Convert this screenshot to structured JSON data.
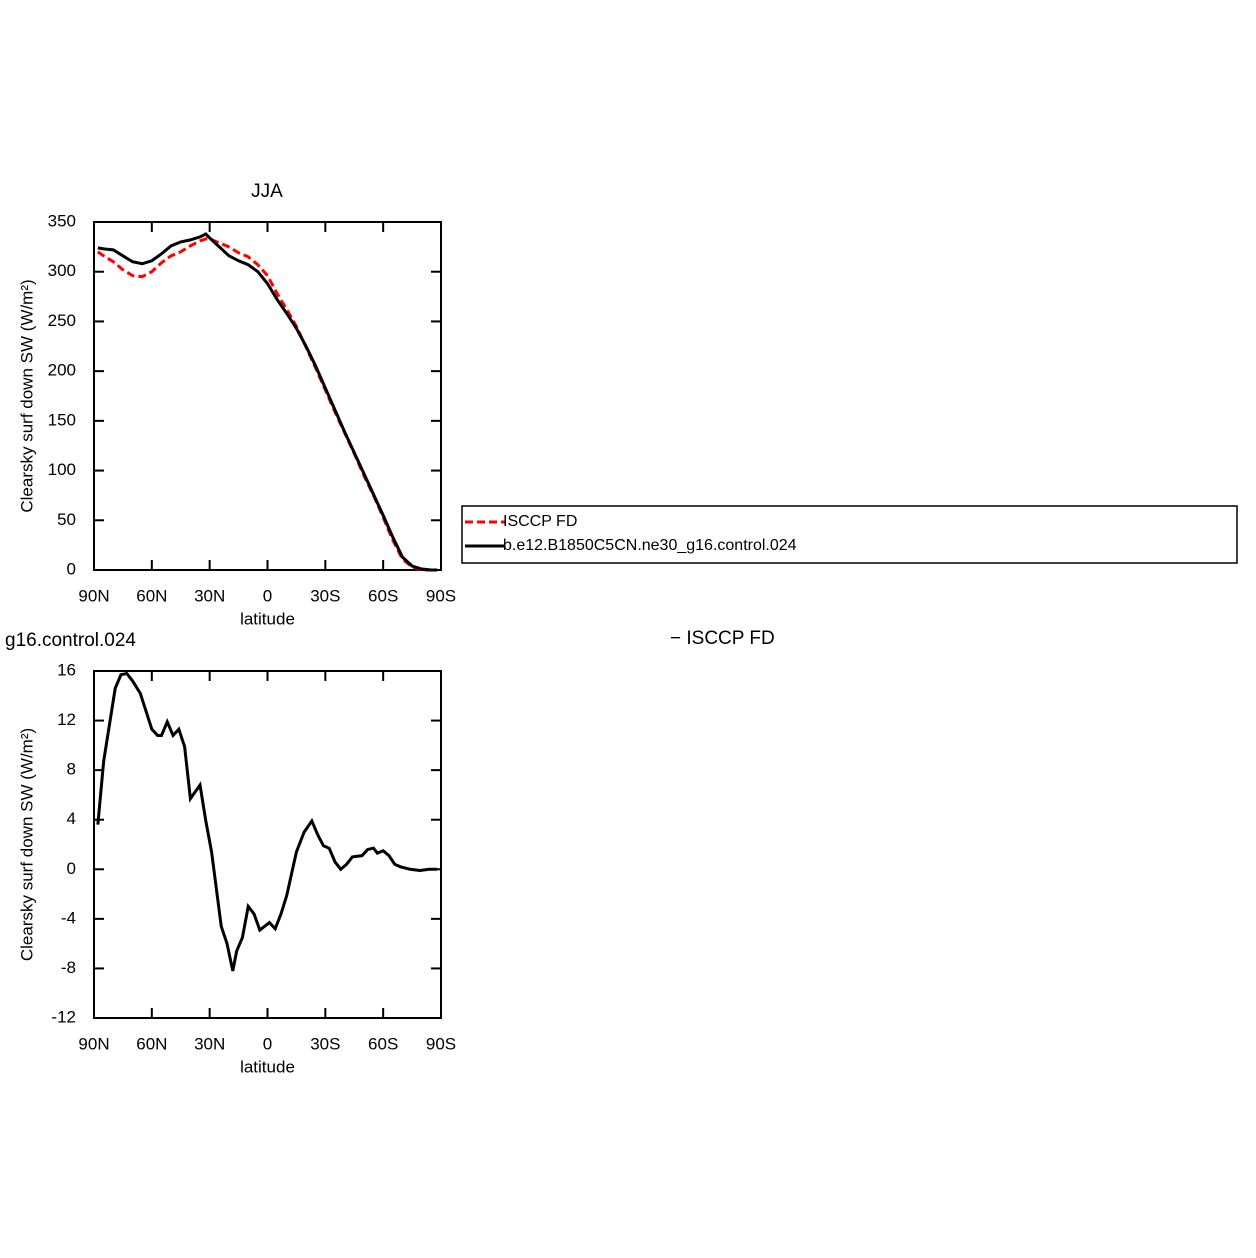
{
  "chart_data": [
    {
      "type": "line",
      "title": "JJA",
      "xlabel": "latitude",
      "ylabel": "Clearsky surf down SW (W/m²)",
      "x": [
        88,
        85,
        80,
        75,
        70,
        65,
        60,
        55,
        50,
        45,
        40,
        35,
        32,
        30,
        25,
        20,
        15,
        10,
        5,
        0,
        -5,
        -10,
        -15,
        -20,
        -25,
        -30,
        -35,
        -40,
        -45,
        -50,
        -55,
        -60,
        -65,
        -70,
        -75,
        -80,
        -85,
        -88
      ],
      "series": [
        {
          "name": "ISCCP FD",
          "color": "#ff0000",
          "style": "dashed",
          "values": [
            320,
            316,
            310,
            302,
            296,
            295,
            300,
            309,
            316,
            320,
            326,
            331,
            333,
            333,
            329,
            325,
            319,
            315,
            307,
            296,
            278,
            262,
            245,
            224,
            203,
            181,
            159,
            138,
            117,
            95,
            75,
            53,
            30,
            11,
            3,
            0,
            0,
            0
          ]
        },
        {
          "name": "b.e12.B1850C5CN.ne30_g16.control.024",
          "color": "#000000",
          "style": "solid",
          "values": [
            324,
            323,
            322,
            316,
            310,
            308,
            311,
            318,
            326,
            330,
            332,
            335,
            338,
            334,
            325,
            316,
            311,
            307,
            300,
            288,
            272,
            258,
            243,
            225,
            205,
            183,
            161,
            139,
            118,
            97,
            76,
            55,
            33,
            13,
            4,
            1,
            0,
            0
          ]
        }
      ],
      "xlim": [
        90,
        -90
      ],
      "xticks": [
        {
          "value": 90,
          "label": "90N"
        },
        {
          "value": 60,
          "label": "60N"
        },
        {
          "value": 30,
          "label": "30N"
        },
        0,
        {
          "value": -30,
          "label": "30S"
        },
        {
          "value": -60,
          "label": "60S"
        },
        {
          "value": -90,
          "label": "90S"
        }
      ],
      "ylim": [
        0,
        350
      ],
      "yticks": [
        0,
        50,
        100,
        150,
        200,
        250,
        300,
        350
      ],
      "legend": "right"
    },
    {
      "type": "line",
      "title": "g16.control.024",
      "annotation": "− ISCCP FD",
      "xlabel": "latitude",
      "ylabel": "Clearsky surf down SW (W/m²)",
      "x": [
        88,
        85,
        79,
        76,
        73,
        70,
        66,
        60,
        57,
        55,
        52,
        49,
        46,
        43,
        40,
        35,
        32,
        29,
        24,
        21,
        18,
        16,
        13,
        10,
        7,
        4,
        -1,
        -4,
        -7,
        -10,
        -15,
        -19,
        -23,
        -26,
        -29,
        -32,
        -35,
        -38,
        -41,
        -44,
        -49,
        -52,
        -55,
        -57,
        -60,
        -63,
        -66,
        -69,
        -74,
        -79,
        -84,
        -88
      ],
      "series": [
        {
          "color": "#000000",
          "style": "solid",
          "values": [
            3.6,
            8.7,
            14.6,
            15.7,
            15.8,
            15.2,
            14.2,
            11.3,
            10.8,
            10.8,
            11.9,
            10.8,
            11.3,
            9.9,
            5.7,
            6.8,
            3.9,
            1.4,
            -4.6,
            -6.0,
            -8.2,
            -6.6,
            -5.5,
            -3.0,
            -3.6,
            -4.9,
            -4.3,
            -4.8,
            -3.6,
            -2.1,
            1.4,
            3.0,
            3.9,
            2.8,
            1.9,
            1.7,
            0.6,
            0.0,
            0.4,
            1.0,
            1.1,
            1.6,
            1.7,
            1.3,
            1.5,
            1.1,
            0.4,
            0.2,
            0.0,
            -0.1,
            0.0,
            0.0
          ]
        }
      ],
      "xlim": [
        90,
        -90
      ],
      "xticks": [
        {
          "value": 90,
          "label": "90N"
        },
        {
          "value": 60,
          "label": "60N"
        },
        {
          "value": 30,
          "label": "30N"
        },
        0,
        {
          "value": -30,
          "label": "30S"
        },
        {
          "value": -60,
          "label": "60S"
        },
        {
          "value": -90,
          "label": "90S"
        }
      ],
      "ylim": [
        -12,
        16
      ],
      "yticks": [
        -12,
        -8,
        -4,
        0,
        4,
        8,
        12,
        16
      ]
    }
  ]
}
